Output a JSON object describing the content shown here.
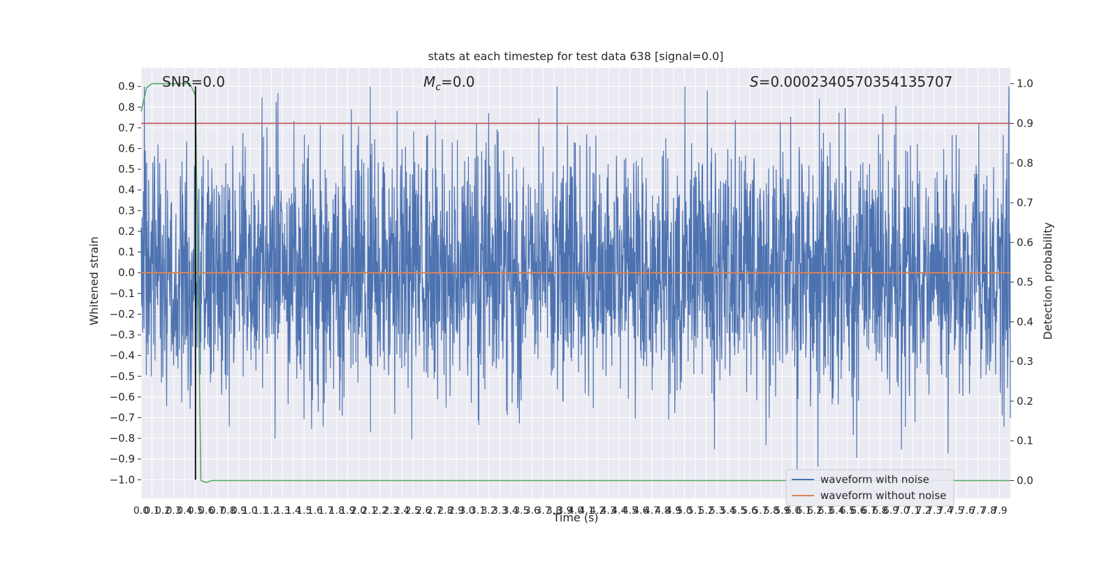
{
  "chart_data": {
    "type": "line",
    "title": "stats at each timestep for test data 638 [signal=0.0]",
    "xlabel": "Time (s)",
    "ylabel": "Whitened strain",
    "y2label": "Detection probability",
    "annotations": {
      "snr": "SNR=0.0",
      "mc_symbol": "M",
      "mc_sub": "c",
      "mc_value": "=0.0",
      "s_symbol": "S",
      "s_value": "=0.0002340570354135707"
    },
    "xlim": [
      0,
      8.0
    ],
    "ylim": [
      -1.09,
      0.99
    ],
    "y2lim": [
      -0.045,
      1.04
    ],
    "x_ticks": [
      "0.0",
      "0.1",
      "0.2",
      "0.3",
      "0.4",
      "0.5",
      "0.6",
      "0.7",
      "0.8",
      "0.9",
      "1.0",
      "1.1",
      "1.2",
      "1.3",
      "1.4",
      "1.5",
      "1.6",
      "1.7",
      "1.8",
      "1.9",
      "2.0",
      "2.1",
      "2.2",
      "2.3",
      "2.4",
      "2.5",
      "2.6",
      "2.7",
      "2.8",
      "2.9",
      "3.0",
      "3.1",
      "3.2",
      "3.3",
      "3.4",
      "3.5",
      "3.6",
      "3.7",
      "3.8",
      "3.9",
      "4.0",
      "4.1",
      "4.2",
      "4.3",
      "4.4",
      "4.5",
      "4.6",
      "4.7",
      "4.8",
      "4.9",
      "5.0",
      "5.1",
      "5.2",
      "5.3",
      "5.4",
      "5.5",
      "5.6",
      "5.7",
      "5.8",
      "5.9",
      "6.0",
      "6.1",
      "6.2",
      "6.3",
      "6.4",
      "6.5",
      "6.6",
      "6.7",
      "6.8",
      "6.9",
      "7.0",
      "7.1",
      "7.2",
      "7.3",
      "7.4",
      "7.5",
      "7.6",
      "7.7",
      "7.8",
      "7.9"
    ],
    "y_ticks": [
      -1.0,
      -0.9,
      -0.8,
      -0.7,
      -0.6,
      -0.5,
      -0.4,
      -0.3,
      -0.2,
      -0.1,
      0.0,
      0.1,
      0.2,
      0.3,
      0.4,
      0.5,
      0.6,
      0.7,
      0.8,
      0.9
    ],
    "y_tick_labels": [
      "−1.0",
      "−0.9",
      "−0.8",
      "−0.7",
      "−0.6",
      "−0.5",
      "−0.4",
      "−0.3",
      "−0.2",
      "−0.1",
      "0.0",
      "0.1",
      "0.2",
      "0.3",
      "0.4",
      "0.5",
      "0.6",
      "0.7",
      "0.8",
      "0.9"
    ],
    "y2_ticks": [
      0.0,
      0.1,
      0.2,
      0.3,
      0.4,
      0.5,
      0.6,
      0.7,
      0.8,
      0.9,
      1.0
    ],
    "y2_tick_labels": [
      "0.0",
      "0.1",
      "0.2",
      "0.3",
      "0.4",
      "0.5",
      "0.6",
      "0.7",
      "0.8",
      "0.9",
      "1.0"
    ],
    "grid": true,
    "legend_position": "lower-right",
    "noise_amplitude": 0.3,
    "series": [
      {
        "name": "waveform with noise",
        "axis": "left",
        "color": "#4c72b0",
        "kind": "noise",
        "approx_range": [
          -1.0,
          0.9
        ]
      },
      {
        "name": "waveform without noise",
        "axis": "left",
        "color": "#dd8452",
        "x": [
          0.0,
          8.0
        ],
        "y": [
          0.0,
          0.0
        ]
      },
      {
        "axis": "right",
        "color": "#c44e52",
        "x": [
          0.0,
          8.0
        ],
        "y": [
          0.9,
          0.9
        ]
      },
      {
        "axis": "right",
        "color": "#55a868",
        "x": [
          0.0,
          0.05,
          0.1,
          0.2,
          0.3,
          0.4,
          0.45,
          0.5,
          0.55,
          0.6,
          0.65,
          8.0
        ],
        "y": [
          0.93,
          0.99,
          1.0,
          1.0,
          1.0,
          1.0,
          1.0,
          0.97,
          0.0,
          -0.005,
          0.0,
          0.0
        ]
      },
      {
        "axis": "left",
        "color": "#000000",
        "x": [
          0.5,
          0.5
        ],
        "y": [
          -1.0,
          0.9
        ]
      }
    ]
  }
}
